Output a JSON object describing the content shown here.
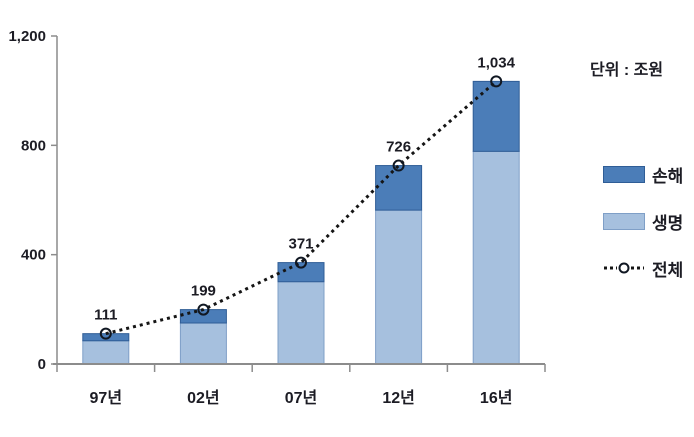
{
  "chart_data": {
    "type": "bar",
    "subtype": "stacked-bar-with-line",
    "unit_label": "단위 : 조원",
    "categories": [
      "97년",
      "02년",
      "07년",
      "12년",
      "16년"
    ],
    "series": [
      {
        "name": "생명",
        "color": "#a6c0de",
        "border": "#7f9fc7",
        "values": [
          85,
          150,
          301,
          563,
          778
        ]
      },
      {
        "name": "손해",
        "color": "#4b7db8",
        "border": "#2f5d96",
        "values": [
          26,
          49,
          70,
          163,
          256
        ]
      }
    ],
    "line_series": {
      "name": "전체",
      "values": [
        111,
        199,
        371,
        726,
        1034
      ]
    },
    "total_labels": [
      "111",
      "199",
      "371",
      "726",
      "1,034"
    ],
    "yticks": [
      0,
      400,
      800,
      1200
    ],
    "ytick_labels": [
      "0",
      "400",
      "800",
      "1,200"
    ],
    "ylim": [
      0,
      1200
    ],
    "xlabel": "",
    "ylabel": "",
    "grid": false,
    "legend_position": "right",
    "colors": {
      "line": "#151515",
      "marker_ring": "#101722",
      "axis": "#8c8c8c",
      "text": "#1c1c24",
      "background": "#ffffff"
    }
  }
}
